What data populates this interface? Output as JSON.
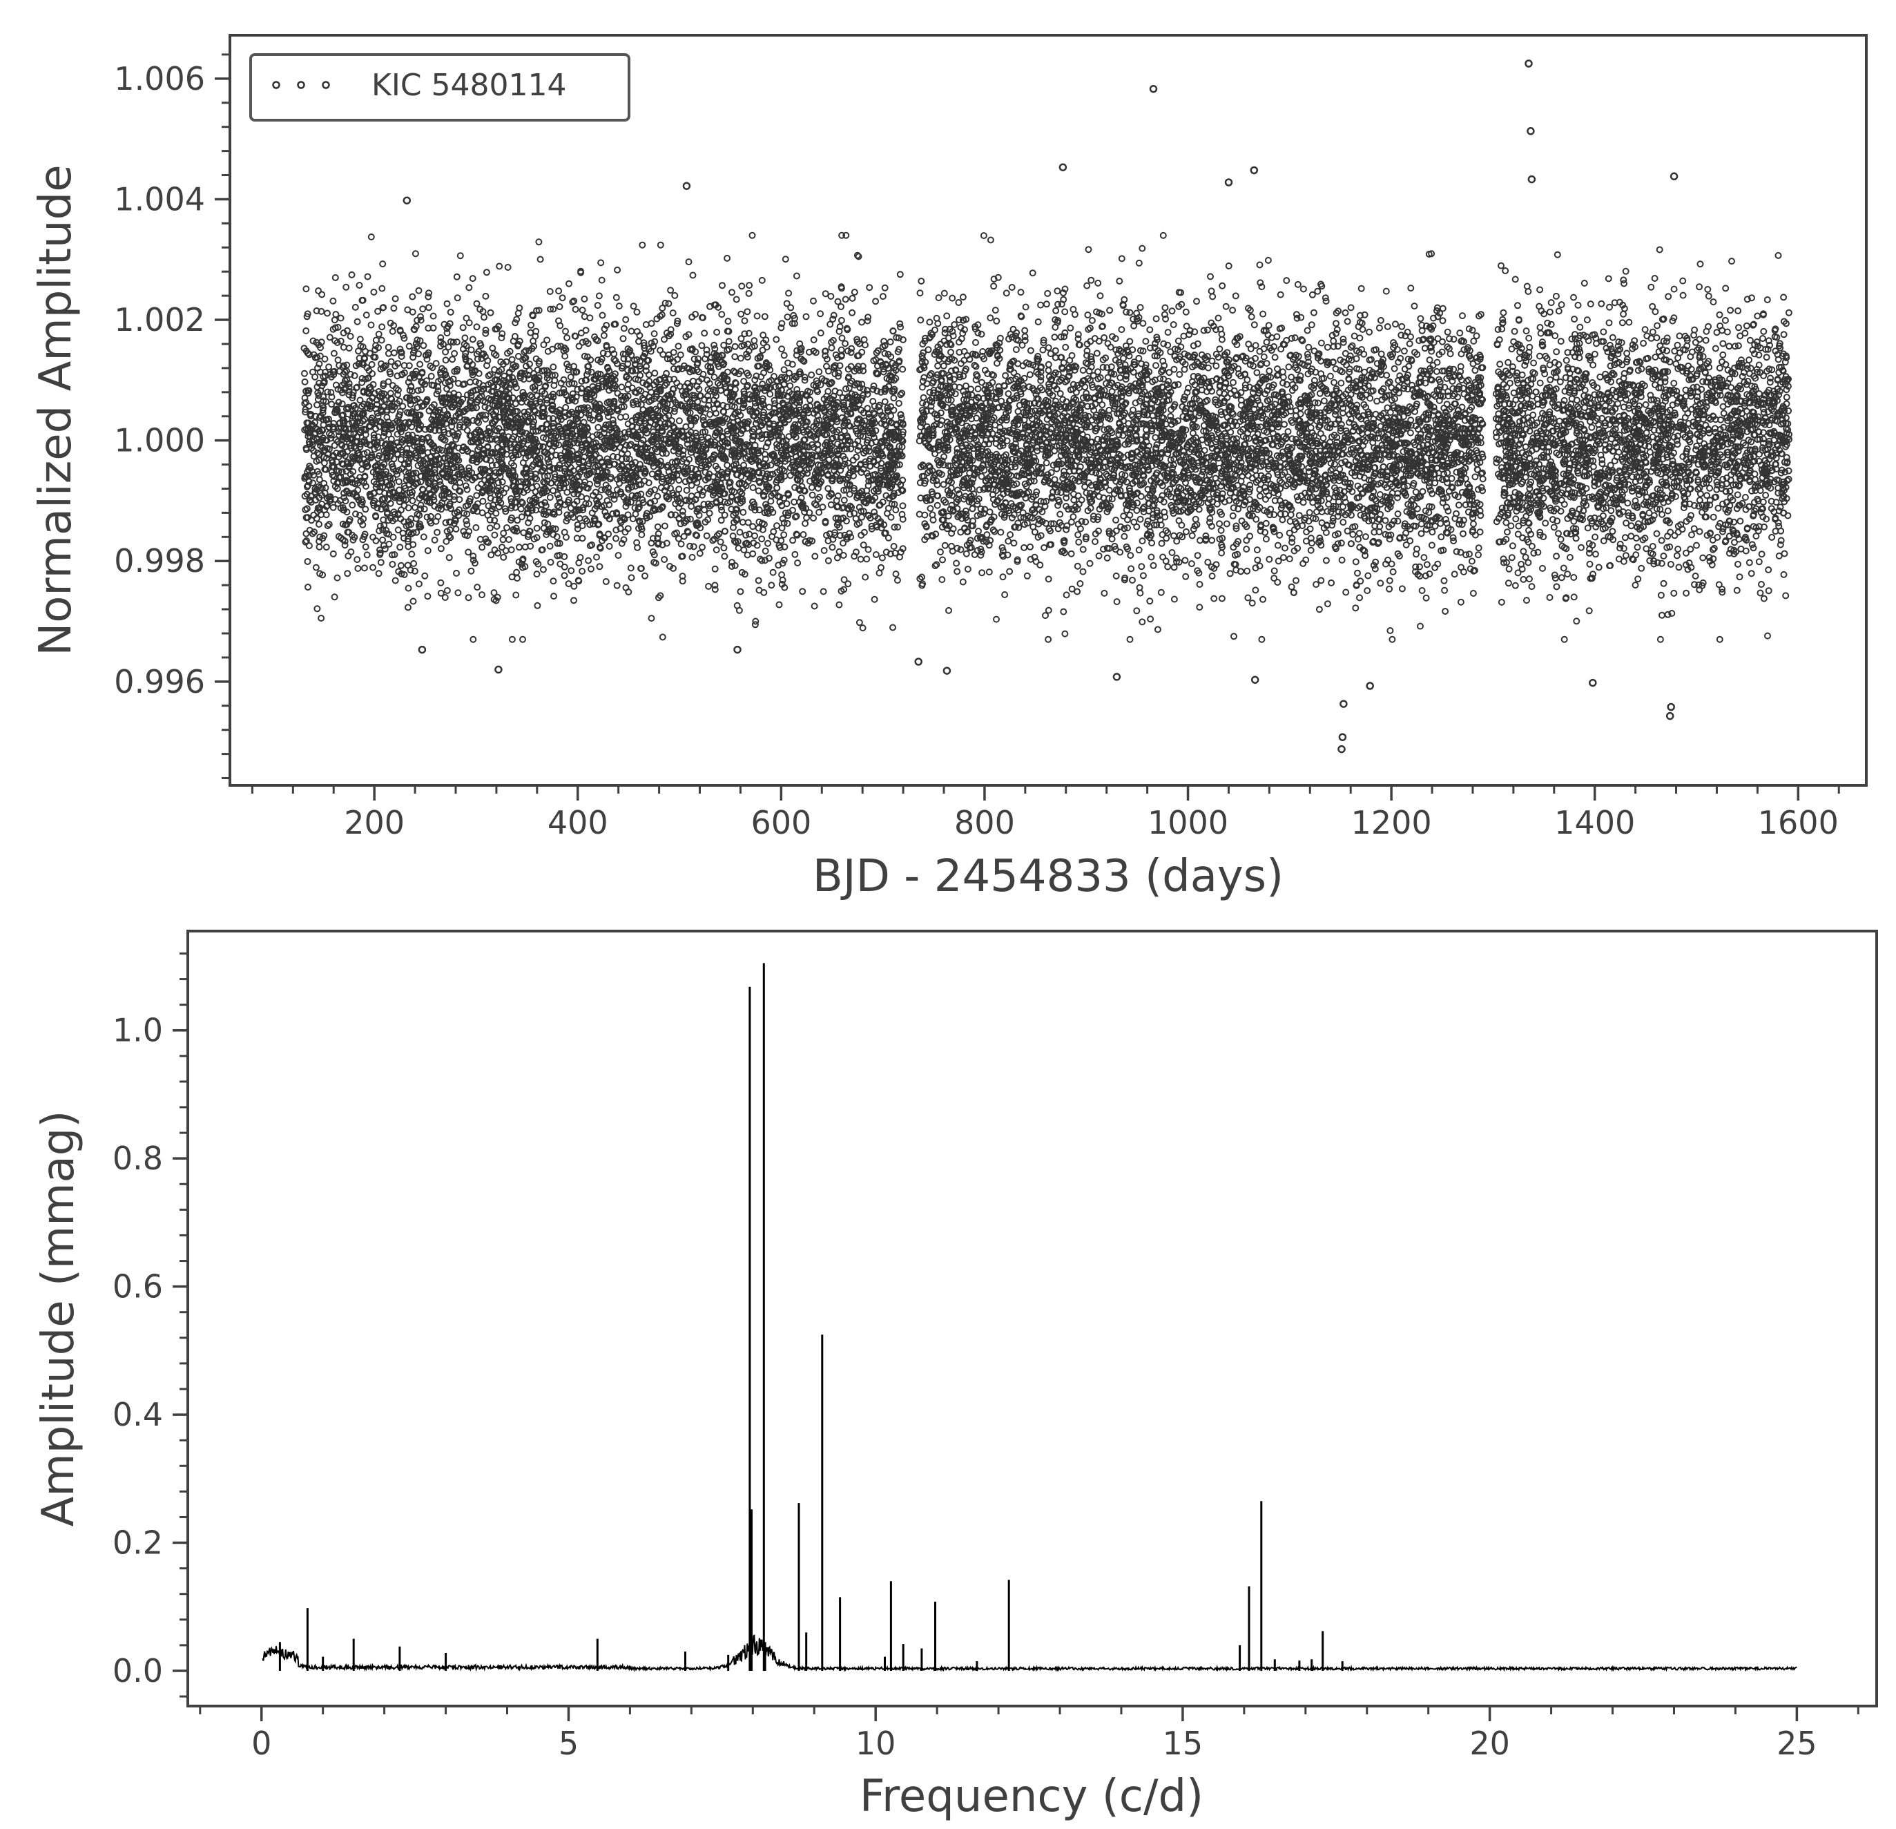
{
  "colors": {
    "axis": "#404040",
    "marker": "#333333",
    "line": "#000000",
    "background": "#ffffff"
  },
  "chart_data": [
    {
      "type": "scatter",
      "xlabel": "BJD - 2454833 (days)",
      "ylabel": "Normalized Amplitude",
      "xlim": [
        58,
        1667
      ],
      "ylim": [
        0.99428,
        1.00672
      ],
      "xticks": [
        200,
        400,
        600,
        800,
        1000,
        1200,
        1400,
        1600
      ],
      "xtick_labels": [
        "200",
        "400",
        "600",
        "800",
        "1000",
        "1200",
        "1400",
        "1600"
      ],
      "xminor_step": 40,
      "yticks": [
        0.996,
        0.998,
        1.0,
        1.002,
        1.004,
        1.006
      ],
      "ytick_labels": [
        "0.996",
        "0.998",
        "1.000",
        "1.002",
        "1.004",
        "1.006"
      ],
      "yminor_step": 0.0004,
      "legend": {
        "label": "KIC 5480114",
        "position": "upper-left"
      },
      "data_segments": [
        [
          131,
          720
        ],
        [
          736,
          1290
        ],
        [
          1303,
          1591
        ]
      ],
      "noise_sigma": 0.00105,
      "outliers": [
        {
          "x": 232,
          "y": 1.00398
        },
        {
          "x": 247,
          "y": 0.99653
        },
        {
          "x": 322,
          "y": 0.9962
        },
        {
          "x": 507,
          "y": 1.00422
        },
        {
          "x": 557,
          "y": 0.99653
        },
        {
          "x": 735,
          "y": 0.99633
        },
        {
          "x": 763,
          "y": 0.99618
        },
        {
          "x": 877,
          "y": 1.00453
        },
        {
          "x": 930,
          "y": 0.99608
        },
        {
          "x": 966,
          "y": 1.00583
        },
        {
          "x": 1040,
          "y": 1.00428
        },
        {
          "x": 1065,
          "y": 1.00448
        },
        {
          "x": 1066,
          "y": 0.99603
        },
        {
          "x": 1151,
          "y": 0.99488
        },
        {
          "x": 1152,
          "y": 0.99508
        },
        {
          "x": 1153,
          "y": 0.99563
        },
        {
          "x": 1179,
          "y": 0.99593
        },
        {
          "x": 1335,
          "y": 1.00625
        },
        {
          "x": 1337,
          "y": 1.00513
        },
        {
          "x": 1338,
          "y": 1.00433
        },
        {
          "x": 1398,
          "y": 0.99598
        },
        {
          "x": 1474,
          "y": 0.99543
        },
        {
          "x": 1475,
          "y": 0.99558
        },
        {
          "x": 1478,
          "y": 1.00438
        }
      ]
    },
    {
      "type": "line",
      "xlabel": "Frequency (c/d)",
      "ylabel": "Amplitude (mmag)",
      "xlim": [
        -1.2,
        26.3
      ],
      "ylim": [
        -0.055,
        1.155
      ],
      "xticks": [
        0,
        5,
        10,
        15,
        20,
        25
      ],
      "xtick_labels": [
        "0",
        "5",
        "10",
        "15",
        "20",
        "25"
      ],
      "xminor_step": 1,
      "yticks": [
        0.0,
        0.2,
        0.4,
        0.6,
        0.8,
        1.0
      ],
      "ytick_labels": [
        "0.0",
        "0.2",
        "0.4",
        "0.6",
        "0.8",
        "1.0"
      ],
      "yminor_step": 0.04,
      "peaks": [
        {
          "x": 0.3,
          "y": 0.045
        },
        {
          "x": 0.75,
          "y": 0.098
        },
        {
          "x": 1.0,
          "y": 0.022
        },
        {
          "x": 1.5,
          "y": 0.05
        },
        {
          "x": 2.25,
          "y": 0.038
        },
        {
          "x": 3.0,
          "y": 0.028
        },
        {
          "x": 5.47,
          "y": 0.05
        },
        {
          "x": 6.9,
          "y": 0.03
        },
        {
          "x": 7.6,
          "y": 0.025
        },
        {
          "x": 7.95,
          "y": 1.068
        },
        {
          "x": 7.98,
          "y": 0.252
        },
        {
          "x": 8.18,
          "y": 1.105
        },
        {
          "x": 8.2,
          "y": 0.045
        },
        {
          "x": 8.75,
          "y": 0.262
        },
        {
          "x": 8.87,
          "y": 0.06
        },
        {
          "x": 9.13,
          "y": 0.525
        },
        {
          "x": 9.42,
          "y": 0.115
        },
        {
          "x": 10.15,
          "y": 0.022
        },
        {
          "x": 10.25,
          "y": 0.14
        },
        {
          "x": 10.45,
          "y": 0.042
        },
        {
          "x": 10.75,
          "y": 0.035
        },
        {
          "x": 10.97,
          "y": 0.108
        },
        {
          "x": 11.65,
          "y": 0.015
        },
        {
          "x": 12.17,
          "y": 0.142
        },
        {
          "x": 15.93,
          "y": 0.04
        },
        {
          "x": 16.08,
          "y": 0.132
        },
        {
          "x": 16.28,
          "y": 0.265
        },
        {
          "x": 16.5,
          "y": 0.018
        },
        {
          "x": 16.9,
          "y": 0.016
        },
        {
          "x": 17.1,
          "y": 0.018
        },
        {
          "x": 17.28,
          "y": 0.062
        },
        {
          "x": 17.6,
          "y": 0.015
        }
      ],
      "bumps": [
        {
          "center": 8.05,
          "width": 0.35,
          "amp": 0.035
        },
        {
          "center": 0.25,
          "width": 0.3,
          "amp": 0.012
        }
      ],
      "noise_floor": 0.004
    }
  ]
}
